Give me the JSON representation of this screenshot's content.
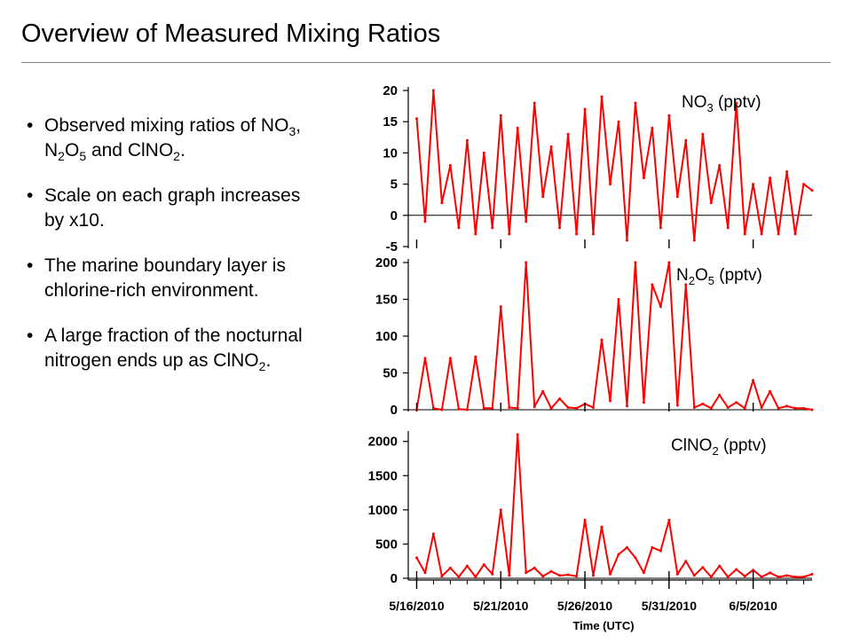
{
  "slide": {
    "title": "Overview of Measured Mixing Ratios"
  },
  "bullets": [
    {
      "parts": [
        {
          "t": "Observed mixing ratios of NO"
        },
        {
          "t": "3",
          "sub": true
        },
        {
          "t": ", N"
        },
        {
          "t": "2",
          "sub": true
        },
        {
          "t": "O"
        },
        {
          "t": "5",
          "sub": true
        },
        {
          "t": " and ClNO"
        },
        {
          "t": "2",
          "sub": true
        },
        {
          "t": "."
        }
      ]
    },
    {
      "parts": [
        {
          "t": "Scale on each graph increases by x10."
        }
      ]
    },
    {
      "parts": [
        {
          "t": "The marine boundary layer is chlorine-rich environment."
        }
      ]
    },
    {
      "parts": [
        {
          "t": "A large fraction of the nocturnal nitrogen ends up as ClNO"
        },
        {
          "t": "2",
          "sub": true
        },
        {
          "t": "."
        }
      ]
    }
  ],
  "chart_data": [
    {
      "type": "line",
      "title_parts": [
        {
          "t": "NO"
        },
        {
          "t": "3",
          "sub": true
        },
        {
          "t": " (pptv)"
        }
      ],
      "ylim": [
        -5,
        20
      ],
      "yticks": [
        -5,
        0,
        5,
        10,
        15,
        20
      ],
      "series_color": "#ff0000",
      "zero_line": true,
      "x": [
        "5/16/2010 00:00",
        "5/16/2010 12:00",
        "5/17/2010 00:00",
        "5/17/2010 12:00",
        "5/18/2010 00:00",
        "5/18/2010 12:00",
        "5/19/2010 00:00",
        "5/19/2010 12:00",
        "5/20/2010 00:00",
        "5/20/2010 12:00",
        "5/21/2010 00:00",
        "5/21/2010 12:00",
        "5/22/2010 00:00",
        "5/22/2010 12:00",
        "5/23/2010 00:00",
        "5/23/2010 12:00",
        "5/24/2010 00:00",
        "5/24/2010 12:00",
        "5/25/2010 00:00",
        "5/25/2010 12:00",
        "5/26/2010 00:00",
        "5/26/2010 12:00",
        "5/27/2010 00:00",
        "5/27/2010 12:00",
        "5/28/2010 00:00",
        "5/28/2010 12:00",
        "5/29/2010 00:00",
        "5/29/2010 12:00",
        "5/30/2010 00:00",
        "5/30/2010 12:00",
        "5/31/2010 00:00",
        "5/31/2010 12:00",
        "6/1/2010 00:00",
        "6/1/2010 12:00",
        "6/2/2010 00:00",
        "6/2/2010 12:00",
        "6/3/2010 00:00",
        "6/3/2010 12:00",
        "6/4/2010 00:00",
        "6/4/2010 12:00",
        "6/5/2010 00:00",
        "6/5/2010 12:00",
        "6/6/2010 00:00",
        "6/6/2010 12:00",
        "6/7/2010 00:00",
        "6/7/2010 12:00",
        "6/8/2010 00:00",
        "6/8/2010 12:00"
      ],
      "values": [
        15.5,
        -1,
        20,
        2,
        8,
        -2,
        12,
        -3,
        10,
        -2,
        16,
        -3,
        14,
        -1,
        18,
        3,
        11,
        -2,
        13,
        -3,
        17,
        -3,
        19,
        5,
        15,
        -4,
        18,
        6,
        14,
        -2,
        16,
        3,
        12,
        -4,
        13,
        2,
        8,
        -2,
        18,
        -3,
        5,
        -3,
        6,
        -3,
        7,
        -3,
        5,
        4
      ],
      "x_range": [
        "5/15/2010 12:00",
        "6/8/2010 12:00"
      ]
    },
    {
      "type": "line",
      "title_parts": [
        {
          "t": "N"
        },
        {
          "t": "2",
          "sub": true
        },
        {
          "t": "O"
        },
        {
          "t": "5",
          "sub": true
        },
        {
          "t": " (pptv)"
        }
      ],
      "ylim": [
        0,
        200
      ],
      "yticks": [
        0,
        50,
        100,
        150,
        200
      ],
      "series_color": "#ff0000",
      "zero_line": true,
      "x": [
        "5/16/2010 00:00",
        "5/16/2010 12:00",
        "5/17/2010 00:00",
        "5/17/2010 12:00",
        "5/18/2010 00:00",
        "5/18/2010 12:00",
        "5/19/2010 00:00",
        "5/19/2010 12:00",
        "5/20/2010 00:00",
        "5/20/2010 12:00",
        "5/21/2010 00:00",
        "5/21/2010 12:00",
        "5/22/2010 00:00",
        "5/22/2010 12:00",
        "5/23/2010 00:00",
        "5/23/2010 12:00",
        "5/24/2010 00:00",
        "5/24/2010 12:00",
        "5/25/2010 00:00",
        "5/25/2010 12:00",
        "5/26/2010 00:00",
        "5/26/2010 12:00",
        "5/27/2010 00:00",
        "5/27/2010 12:00",
        "5/28/2010 00:00",
        "5/28/2010 12:00",
        "5/29/2010 00:00",
        "5/29/2010 12:00",
        "5/30/2010 00:00",
        "5/30/2010 12:00",
        "5/31/2010 00:00",
        "5/31/2010 12:00",
        "6/1/2010 00:00",
        "6/1/2010 12:00",
        "6/2/2010 00:00",
        "6/2/2010 12:00",
        "6/3/2010 00:00",
        "6/3/2010 12:00",
        "6/4/2010 00:00",
        "6/4/2010 12:00",
        "6/5/2010 00:00",
        "6/5/2010 12:00",
        "6/6/2010 00:00",
        "6/6/2010 12:00",
        "6/7/2010 00:00",
        "6/7/2010 12:00",
        "6/8/2010 00:00",
        "6/8/2010 12:00"
      ],
      "values": [
        0,
        70,
        2,
        0,
        70,
        1,
        0,
        72,
        2,
        2,
        140,
        3,
        2,
        200,
        4,
        25,
        2,
        15,
        3,
        2,
        8,
        3,
        95,
        12,
        150,
        5,
        200,
        10,
        170,
        140,
        200,
        6,
        170,
        3,
        8,
        2,
        20,
        3,
        10,
        2,
        40,
        3,
        25,
        2,
        5,
        2,
        2,
        0
      ],
      "x_range": [
        "5/15/2010 12:00",
        "6/8/2010 12:00"
      ]
    },
    {
      "type": "line",
      "title_parts": [
        {
          "t": "ClNO"
        },
        {
          "t": "2",
          "sub": true
        },
        {
          "t": " (pptv)"
        }
      ],
      "ylim": [
        0,
        2100
      ],
      "yticks": [
        0,
        500,
        1000,
        1500,
        2000
      ],
      "series_color": "#ff0000",
      "zero_line": true,
      "x": [
        "5/16/2010 00:00",
        "5/16/2010 12:00",
        "5/17/2010 00:00",
        "5/17/2010 12:00",
        "5/18/2010 00:00",
        "5/18/2010 12:00",
        "5/19/2010 00:00",
        "5/19/2010 12:00",
        "5/20/2010 00:00",
        "5/20/2010 12:00",
        "5/21/2010 00:00",
        "5/21/2010 12:00",
        "5/22/2010 00:00",
        "5/22/2010 12:00",
        "5/23/2010 00:00",
        "5/23/2010 12:00",
        "5/24/2010 00:00",
        "5/24/2010 12:00",
        "5/25/2010 00:00",
        "5/25/2010 12:00",
        "5/26/2010 00:00",
        "5/26/2010 12:00",
        "5/27/2010 00:00",
        "5/27/2010 12:00",
        "5/28/2010 00:00",
        "5/28/2010 12:00",
        "5/29/2010 00:00",
        "5/29/2010 12:00",
        "5/30/2010 00:00",
        "5/30/2010 12:00",
        "5/31/2010 00:00",
        "5/31/2010 12:00",
        "6/1/2010 00:00",
        "6/1/2010 12:00",
        "6/2/2010 00:00",
        "6/2/2010 12:00",
        "6/3/2010 00:00",
        "6/3/2010 12:00",
        "6/4/2010 00:00",
        "6/4/2010 12:00",
        "6/5/2010 00:00",
        "6/5/2010 12:00",
        "6/6/2010 00:00",
        "6/6/2010 12:00",
        "6/7/2010 00:00",
        "6/7/2010 12:00",
        "6/8/2010 00:00",
        "6/8/2010 12:00"
      ],
      "values": [
        300,
        80,
        650,
        30,
        150,
        20,
        180,
        20,
        200,
        60,
        1000,
        40,
        2200,
        80,
        150,
        30,
        100,
        40,
        50,
        30,
        850,
        40,
        750,
        60,
        350,
        450,
        300,
        80,
        450,
        400,
        850,
        60,
        250,
        40,
        160,
        20,
        180,
        20,
        130,
        30,
        120,
        20,
        80,
        20,
        40,
        20,
        20,
        60
      ],
      "x_range": [
        "5/15/2010 12:00",
        "6/8/2010 12:00"
      ]
    }
  ],
  "x_axis": {
    "tick_labels": [
      "5/16/2010",
      "5/21/2010",
      "5/26/2010",
      "5/31/2010",
      "6/5/2010"
    ],
    "tick_values": [
      "5/16/2010 00:00",
      "5/21/2010 00:00",
      "5/26/2010 00:00",
      "5/31/2010 00:00",
      "6/5/2010 00:00"
    ],
    "label": "Time (UTC)"
  }
}
